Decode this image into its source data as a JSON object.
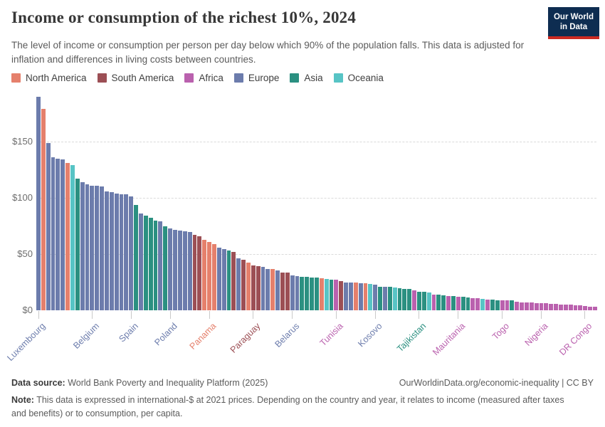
{
  "header": {
    "title": "Income or consumption of the richest 10%, 2024",
    "subtitle": "The level of income or consumption per person per day below which 90% of the population falls. This data is adjusted for inflation and differences in living costs between countries.",
    "logo": {
      "line1": "Our World",
      "line2": "in Data"
    }
  },
  "legend": {
    "items": [
      {
        "label": "North America",
        "key": "na"
      },
      {
        "label": "South America",
        "key": "sa"
      },
      {
        "label": "Africa",
        "key": "af"
      },
      {
        "label": "Europe",
        "key": "eu"
      },
      {
        "label": "Asia",
        "key": "as"
      },
      {
        "label": "Oceania",
        "key": "oc"
      }
    ]
  },
  "colors": {
    "na": "#E5806C",
    "sa": "#9C4F55",
    "af": "#BA61AE",
    "eu": "#6C7CAC",
    "as": "#2B9081",
    "oc": "#57C4C5",
    "grid": "#DADADA",
    "axis_tick": "#C9C9C9",
    "logo_bg": "#0E2D51",
    "logo_red": "#CC2A22"
  },
  "chart_data": {
    "type": "bar",
    "title": "Income or consumption of the richest 10%, 2024",
    "unit": "international-$ per person per day",
    "ylim": [
      0,
      190.5
    ],
    "grid": "horizontal-dashed",
    "legend_position": "top",
    "yticks": [
      {
        "value": 0,
        "label": "$0"
      },
      {
        "value": 50,
        "label": "$50"
      },
      {
        "value": 100,
        "label": "$100"
      },
      {
        "value": 150,
        "label": "$150"
      }
    ],
    "bars_format": "v = $/day threshold, c = continent key (na,sa,af,eu,as,oc)",
    "bars": [
      {
        "v": 190,
        "c": "eu"
      },
      {
        "v": 179,
        "c": "na"
      },
      {
        "v": 149,
        "c": "eu"
      },
      {
        "v": 136,
        "c": "eu"
      },
      {
        "v": 135,
        "c": "eu"
      },
      {
        "v": 134,
        "c": "eu"
      },
      {
        "v": 131,
        "c": "na"
      },
      {
        "v": 129,
        "c": "oc"
      },
      {
        "v": 117,
        "c": "as"
      },
      {
        "v": 114,
        "c": "eu"
      },
      {
        "v": 112,
        "c": "eu"
      },
      {
        "v": 111,
        "c": "eu"
      },
      {
        "v": 110.5,
        "c": "eu"
      },
      {
        "v": 110,
        "c": "eu"
      },
      {
        "v": 105.5,
        "c": "eu"
      },
      {
        "v": 105,
        "c": "eu"
      },
      {
        "v": 104,
        "c": "eu"
      },
      {
        "v": 103.5,
        "c": "eu"
      },
      {
        "v": 103,
        "c": "eu"
      },
      {
        "v": 101,
        "c": "eu"
      },
      {
        "v": 94,
        "c": "as"
      },
      {
        "v": 86,
        "c": "eu"
      },
      {
        "v": 84,
        "c": "as"
      },
      {
        "v": 82,
        "c": "as"
      },
      {
        "v": 80,
        "c": "as"
      },
      {
        "v": 79,
        "c": "eu"
      },
      {
        "v": 75,
        "c": "as"
      },
      {
        "v": 73,
        "c": "eu"
      },
      {
        "v": 71.5,
        "c": "eu"
      },
      {
        "v": 71,
        "c": "eu"
      },
      {
        "v": 70,
        "c": "eu"
      },
      {
        "v": 69.5,
        "c": "eu"
      },
      {
        "v": 67,
        "c": "sa"
      },
      {
        "v": 66,
        "c": "sa"
      },
      {
        "v": 62.5,
        "c": "na"
      },
      {
        "v": 61,
        "c": "na"
      },
      {
        "v": 59,
        "c": "na"
      },
      {
        "v": 56,
        "c": "eu"
      },
      {
        "v": 54.5,
        "c": "eu"
      },
      {
        "v": 53.4,
        "c": "as"
      },
      {
        "v": 52,
        "c": "sa"
      },
      {
        "v": 46.5,
        "c": "eu"
      },
      {
        "v": 45,
        "c": "sa"
      },
      {
        "v": 42.3,
        "c": "na"
      },
      {
        "v": 39.7,
        "c": "sa"
      },
      {
        "v": 39,
        "c": "sa"
      },
      {
        "v": 38.5,
        "c": "eu"
      },
      {
        "v": 37,
        "c": "eu"
      },
      {
        "v": 36.5,
        "c": "na"
      },
      {
        "v": 35.5,
        "c": "eu"
      },
      {
        "v": 33.6,
        "c": "sa"
      },
      {
        "v": 33.4,
        "c": "sa"
      },
      {
        "v": 31,
        "c": "eu"
      },
      {
        "v": 30.5,
        "c": "eu"
      },
      {
        "v": 30,
        "c": "as"
      },
      {
        "v": 29.6,
        "c": "as"
      },
      {
        "v": 29.3,
        "c": "as"
      },
      {
        "v": 29,
        "c": "as"
      },
      {
        "v": 28.4,
        "c": "na"
      },
      {
        "v": 28,
        "c": "oc"
      },
      {
        "v": 27.5,
        "c": "as"
      },
      {
        "v": 27,
        "c": "af"
      },
      {
        "v": 26,
        "c": "sa"
      },
      {
        "v": 24.8,
        "c": "eu"
      },
      {
        "v": 24.6,
        "c": "eu"
      },
      {
        "v": 24.4,
        "c": "na"
      },
      {
        "v": 24.2,
        "c": "eu"
      },
      {
        "v": 23.8,
        "c": "na"
      },
      {
        "v": 23.3,
        "c": "oc"
      },
      {
        "v": 23.1,
        "c": "eu"
      },
      {
        "v": 21,
        "c": "as"
      },
      {
        "v": 20.9,
        "c": "eu"
      },
      {
        "v": 20.8,
        "c": "as"
      },
      {
        "v": 20.3,
        "c": "oc"
      },
      {
        "v": 19.5,
        "c": "as"
      },
      {
        "v": 19.2,
        "c": "as"
      },
      {
        "v": 18.8,
        "c": "as"
      },
      {
        "v": 17.9,
        "c": "af"
      },
      {
        "v": 16.4,
        "c": "as"
      },
      {
        "v": 16.2,
        "c": "as"
      },
      {
        "v": 15.8,
        "c": "oc"
      },
      {
        "v": 13.8,
        "c": "af"
      },
      {
        "v": 13.7,
        "c": "as"
      },
      {
        "v": 13.4,
        "c": "as"
      },
      {
        "v": 13,
        "c": "af"
      },
      {
        "v": 12.5,
        "c": "as"
      },
      {
        "v": 12.2,
        "c": "af"
      },
      {
        "v": 11.8,
        "c": "as"
      },
      {
        "v": 11.4,
        "c": "as"
      },
      {
        "v": 10.8,
        "c": "af"
      },
      {
        "v": 10.7,
        "c": "af"
      },
      {
        "v": 10,
        "c": "oc"
      },
      {
        "v": 9.7,
        "c": "af"
      },
      {
        "v": 9.4,
        "c": "as"
      },
      {
        "v": 9.2,
        "c": "as"
      },
      {
        "v": 9,
        "c": "af"
      },
      {
        "v": 8.9,
        "c": "af"
      },
      {
        "v": 8.7,
        "c": "as"
      },
      {
        "v": 7.6,
        "c": "af"
      },
      {
        "v": 7.3,
        "c": "af"
      },
      {
        "v": 7.1,
        "c": "af"
      },
      {
        "v": 6.9,
        "c": "af"
      },
      {
        "v": 6.6,
        "c": "af"
      },
      {
        "v": 6.3,
        "c": "af"
      },
      {
        "v": 6.1,
        "c": "af"
      },
      {
        "v": 5.8,
        "c": "af"
      },
      {
        "v": 5.6,
        "c": "af"
      },
      {
        "v": 5.3,
        "c": "af"
      },
      {
        "v": 5,
        "c": "af"
      },
      {
        "v": 4.8,
        "c": "af"
      },
      {
        "v": 4.5,
        "c": "af"
      },
      {
        "v": 4.2,
        "c": "af"
      },
      {
        "v": 3.9,
        "c": "af"
      },
      {
        "v": 3.4,
        "c": "af"
      },
      {
        "v": 3,
        "c": "af"
      }
    ],
    "x_tick_labels": [
      {
        "index": 0,
        "label": "Luxembourg",
        "continent": "eu"
      },
      {
        "index": 11,
        "label": "Belgium",
        "continent": "eu"
      },
      {
        "index": 19,
        "label": "Spain",
        "continent": "eu"
      },
      {
        "index": 27,
        "label": "Poland",
        "continent": "eu"
      },
      {
        "index": 35,
        "label": "Panama",
        "continent": "na"
      },
      {
        "index": 44,
        "label": "Paraguay",
        "continent": "sa"
      },
      {
        "index": 52,
        "label": "Belarus",
        "continent": "eu"
      },
      {
        "index": 61,
        "label": "Tunisia",
        "continent": "af"
      },
      {
        "index": 69,
        "label": "Kosovo",
        "continent": "eu"
      },
      {
        "index": 78,
        "label": "Tajikistan",
        "continent": "as"
      },
      {
        "index": 86,
        "label": "Mauritania",
        "continent": "af"
      },
      {
        "index": 95,
        "label": "Togo",
        "continent": "af"
      },
      {
        "index": 103,
        "label": "Nigeria",
        "continent": "af"
      },
      {
        "index": 112,
        "label": "DR Congo",
        "continent": "af"
      }
    ]
  },
  "footer": {
    "source_label": "Data source:",
    "source_value": " World Bank Poverty and Inequality Platform (2025)",
    "link": "OurWorldinData.org/economic-inequality | CC BY",
    "note_label": "Note:",
    "note_value": " This data is expressed in international-$ at 2021 prices. Depending on the country and year, it relates to income (measured after taxes and benefits) or to consumption, per capita."
  }
}
